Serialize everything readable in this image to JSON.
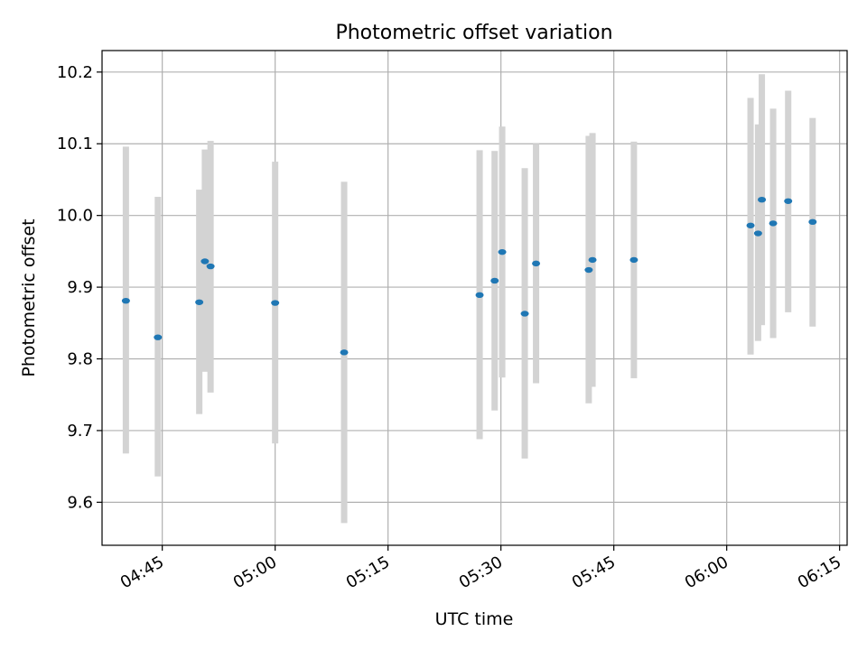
{
  "chart_data": {
    "type": "scatter",
    "title": "Photometric offset variation",
    "xlabel": "UTC time",
    "ylabel": "Photometric offset",
    "xlim": [
      "04:37",
      "06:16"
    ],
    "ylim": [
      9.54,
      10.23
    ],
    "x_ticks": [
      {
        "time": "04:45",
        "label": "04:45"
      },
      {
        "time": "05:00",
        "label": "05:00"
      },
      {
        "time": "05:15",
        "label": "05:15"
      },
      {
        "time": "05:30",
        "label": "05:30"
      },
      {
        "time": "05:45",
        "label": "05:45"
      },
      {
        "time": "06:00",
        "label": "06:00"
      },
      {
        "time": "06:15",
        "label": "06:15"
      }
    ],
    "y_ticks": [
      {
        "value": 9.6,
        "label": "9.6"
      },
      {
        "value": 9.7,
        "label": "9.7"
      },
      {
        "value": 9.8,
        "label": "9.8"
      },
      {
        "value": 9.9,
        "label": "9.9"
      },
      {
        "value": 10.0,
        "label": "10.0"
      },
      {
        "value": 10.1,
        "label": "10.1"
      },
      {
        "value": 10.2,
        "label": "10.2"
      }
    ],
    "grid": true,
    "marker_color": "#1f77b4",
    "errorbar_color": "#d3d3d3",
    "points": [
      {
        "x": "04:40:10",
        "y": 9.881,
        "err_low": 9.668,
        "err_high": 10.096
      },
      {
        "x": "04:44:25",
        "y": 9.83,
        "err_low": 9.636,
        "err_high": 10.026
      },
      {
        "x": "04:49:55",
        "y": 9.879,
        "err_low": 9.723,
        "err_high": 10.036
      },
      {
        "x": "04:50:40",
        "y": 9.936,
        "err_low": 9.782,
        "err_high": 10.092
      },
      {
        "x": "04:51:25",
        "y": 9.929,
        "err_low": 9.753,
        "err_high": 10.104
      },
      {
        "x": "05:00:00",
        "y": 9.878,
        "err_low": 9.682,
        "err_high": 10.075
      },
      {
        "x": "05:09:10",
        "y": 9.809,
        "err_low": 9.571,
        "err_high": 10.047
      },
      {
        "x": "05:27:10",
        "y": 9.889,
        "err_low": 9.688,
        "err_high": 10.091
      },
      {
        "x": "05:29:10",
        "y": 9.909,
        "err_low": 9.728,
        "err_high": 10.09
      },
      {
        "x": "05:30:10",
        "y": 9.949,
        "err_low": 9.774,
        "err_high": 10.124
      },
      {
        "x": "05:33:10",
        "y": 9.863,
        "err_low": 9.661,
        "err_high": 10.066
      },
      {
        "x": "05:34:40",
        "y": 9.933,
        "err_low": 9.766,
        "err_high": 10.1
      },
      {
        "x": "05:41:40",
        "y": 9.924,
        "err_low": 9.738,
        "err_high": 10.111
      },
      {
        "x": "05:42:10",
        "y": 9.938,
        "err_low": 9.761,
        "err_high": 10.115
      },
      {
        "x": "05:47:40",
        "y": 9.938,
        "err_low": 9.773,
        "err_high": 10.103
      },
      {
        "x": "06:03:10",
        "y": 9.986,
        "err_low": 9.806,
        "err_high": 10.164
      },
      {
        "x": "06:04:10",
        "y": 9.975,
        "err_low": 9.825,
        "err_high": 10.127
      },
      {
        "x": "06:04:40",
        "y": 10.022,
        "err_low": 9.847,
        "err_high": 10.197
      },
      {
        "x": "06:06:10",
        "y": 9.989,
        "err_low": 9.829,
        "err_high": 10.149
      },
      {
        "x": "06:08:10",
        "y": 10.02,
        "err_low": 9.865,
        "err_high": 10.174
      },
      {
        "x": "06:11:25",
        "y": 9.991,
        "err_low": 9.845,
        "err_high": 10.136
      }
    ]
  }
}
